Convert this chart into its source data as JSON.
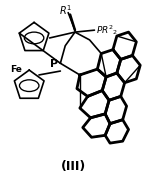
{
  "title": "(III)",
  "title_fontsize": 9,
  "bg_color": "#ffffff",
  "line_color": "#000000",
  "lw_thin": 1.2,
  "lw_thick": 2.0,
  "figsize": [
    1.48,
    1.76
  ],
  "dpi": 100
}
